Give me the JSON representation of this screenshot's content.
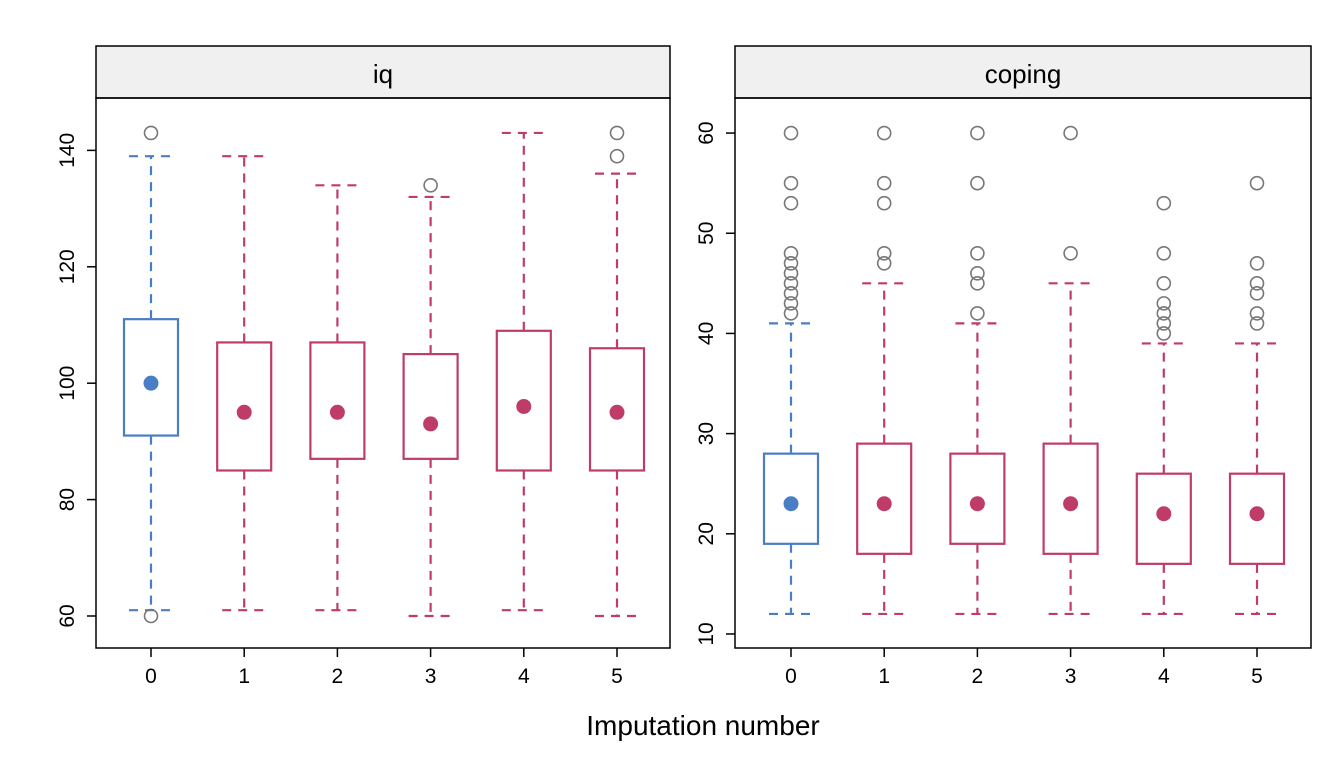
{
  "chart_data": {
    "type": "boxplot",
    "xlabel": "Imputation number",
    "colors": {
      "observed": "#4a7ec4",
      "imputed": "#bf3c68",
      "outlier": "#777777",
      "strip_bg": "#f0f0f0"
    },
    "panels": [
      {
        "title": "iq",
        "ylim": [
          54.5,
          149
        ],
        "yticks": [
          60,
          80,
          100,
          120,
          140
        ],
        "categories": [
          "0",
          "1",
          "2",
          "3",
          "4",
          "5"
        ],
        "boxes": [
          {
            "x": "0",
            "group": "observed",
            "wlow": 61,
            "q1": 91,
            "median": 100,
            "q3": 111,
            "whigh": 139,
            "outliers": [
              143,
              60
            ]
          },
          {
            "x": "1",
            "group": "imputed",
            "wlow": 61,
            "q1": 85,
            "median": 95,
            "q3": 107,
            "whigh": 139,
            "outliers": []
          },
          {
            "x": "2",
            "group": "imputed",
            "wlow": 61,
            "q1": 87,
            "median": 95,
            "q3": 107,
            "whigh": 134,
            "outliers": []
          },
          {
            "x": "3",
            "group": "imputed",
            "wlow": 60,
            "q1": 87,
            "median": 93,
            "q3": 105,
            "whigh": 132,
            "outliers": [
              134
            ]
          },
          {
            "x": "4",
            "group": "imputed",
            "wlow": 61,
            "q1": 85,
            "median": 96,
            "q3": 109,
            "whigh": 143,
            "outliers": []
          },
          {
            "x": "5",
            "group": "imputed",
            "wlow": 60,
            "q1": 85,
            "median": 95,
            "q3": 106,
            "whigh": 136,
            "outliers": [
              143,
              139
            ]
          }
        ]
      },
      {
        "title": "coping",
        "ylim": [
          8.6,
          63.5
        ],
        "yticks": [
          10,
          20,
          30,
          40,
          50,
          60
        ],
        "categories": [
          "0",
          "1",
          "2",
          "3",
          "4",
          "5"
        ],
        "boxes": [
          {
            "x": "0",
            "group": "observed",
            "wlow": 12,
            "q1": 19,
            "median": 23,
            "q3": 28,
            "whigh": 41,
            "outliers": [
              60,
              55,
              53,
              48,
              47,
              46,
              45,
              44,
              43,
              42
            ]
          },
          {
            "x": "1",
            "group": "imputed",
            "wlow": 12,
            "q1": 18,
            "median": 23,
            "q3": 29,
            "whigh": 45,
            "outliers": [
              60,
              55,
              53,
              48,
              47
            ]
          },
          {
            "x": "2",
            "group": "imputed",
            "wlow": 12,
            "q1": 19,
            "median": 23,
            "q3": 28,
            "whigh": 41,
            "outliers": [
              60,
              55,
              48,
              46,
              45,
              42
            ]
          },
          {
            "x": "3",
            "group": "imputed",
            "wlow": 12,
            "q1": 18,
            "median": 23,
            "q3": 29,
            "whigh": 45,
            "outliers": [
              60,
              48
            ]
          },
          {
            "x": "4",
            "group": "imputed",
            "wlow": 12,
            "q1": 17,
            "median": 22,
            "q3": 26,
            "whigh": 39,
            "outliers": [
              53,
              48,
              45,
              43,
              42,
              41,
              40
            ]
          },
          {
            "x": "5",
            "group": "imputed",
            "wlow": 12,
            "q1": 17,
            "median": 22,
            "q3": 26,
            "whigh": 39,
            "outliers": [
              55,
              47,
              45,
              44,
              42,
              41
            ]
          }
        ]
      }
    ]
  }
}
